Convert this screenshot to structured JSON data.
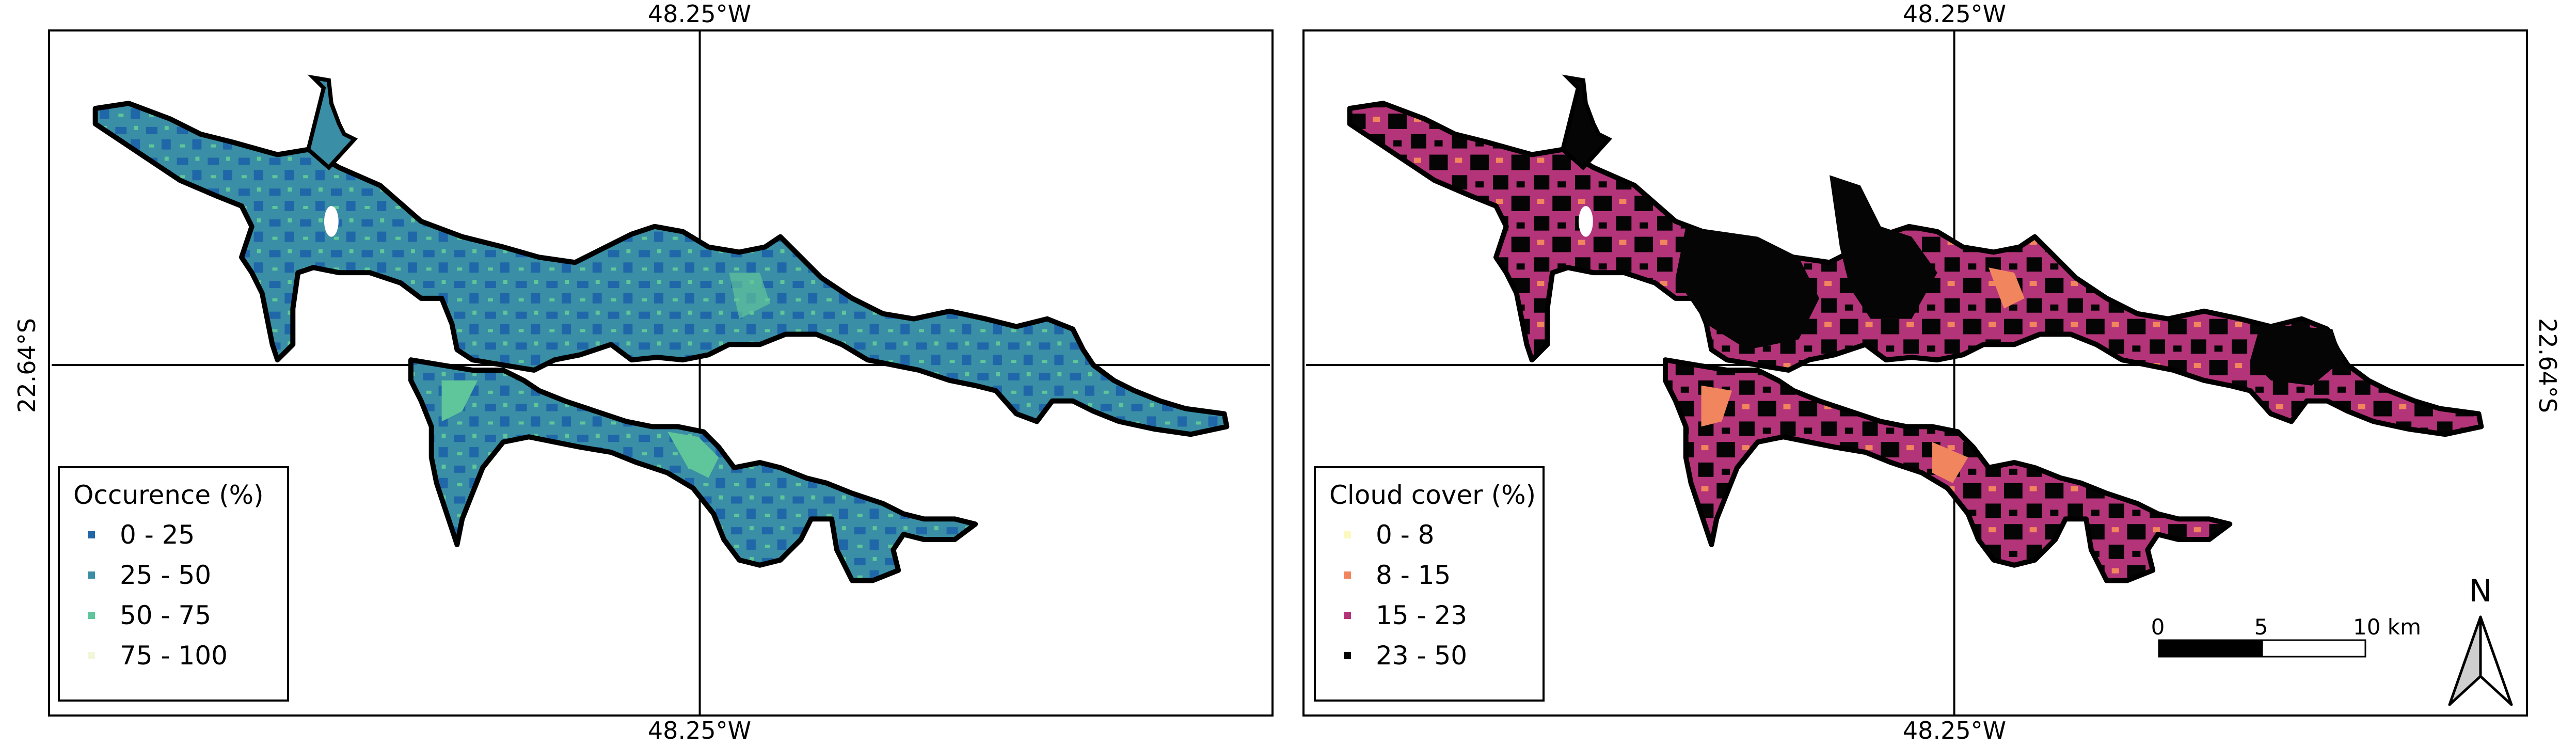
{
  "graticule": {
    "longitude_label": "48.25°W",
    "latitude_label": "22.64°S"
  },
  "left_map": {
    "legend": {
      "title": "Occurence (%)",
      "items": [
        {
          "label": "0 - 25",
          "color": "#1f67a8"
        },
        {
          "label": "25 - 50",
          "color": "#3a8ea5"
        },
        {
          "label": "50 - 75",
          "color": "#5fc59a"
        },
        {
          "label": "75 - 100",
          "color": "#f4f6dc"
        }
      ]
    }
  },
  "right_map": {
    "legend": {
      "title": "Cloud cover (%)",
      "items": [
        {
          "label": "0 - 8",
          "color": "#fcf9c0"
        },
        {
          "label": "8 - 15",
          "color": "#f0855e"
        },
        {
          "label": "15 - 23",
          "color": "#b33478"
        },
        {
          "label": "23 - 50",
          "color": "#050505"
        }
      ]
    },
    "scalebar": {
      "labels": [
        "0",
        "5",
        "10 km"
      ]
    },
    "north_arrow": {
      "label": "N"
    }
  }
}
